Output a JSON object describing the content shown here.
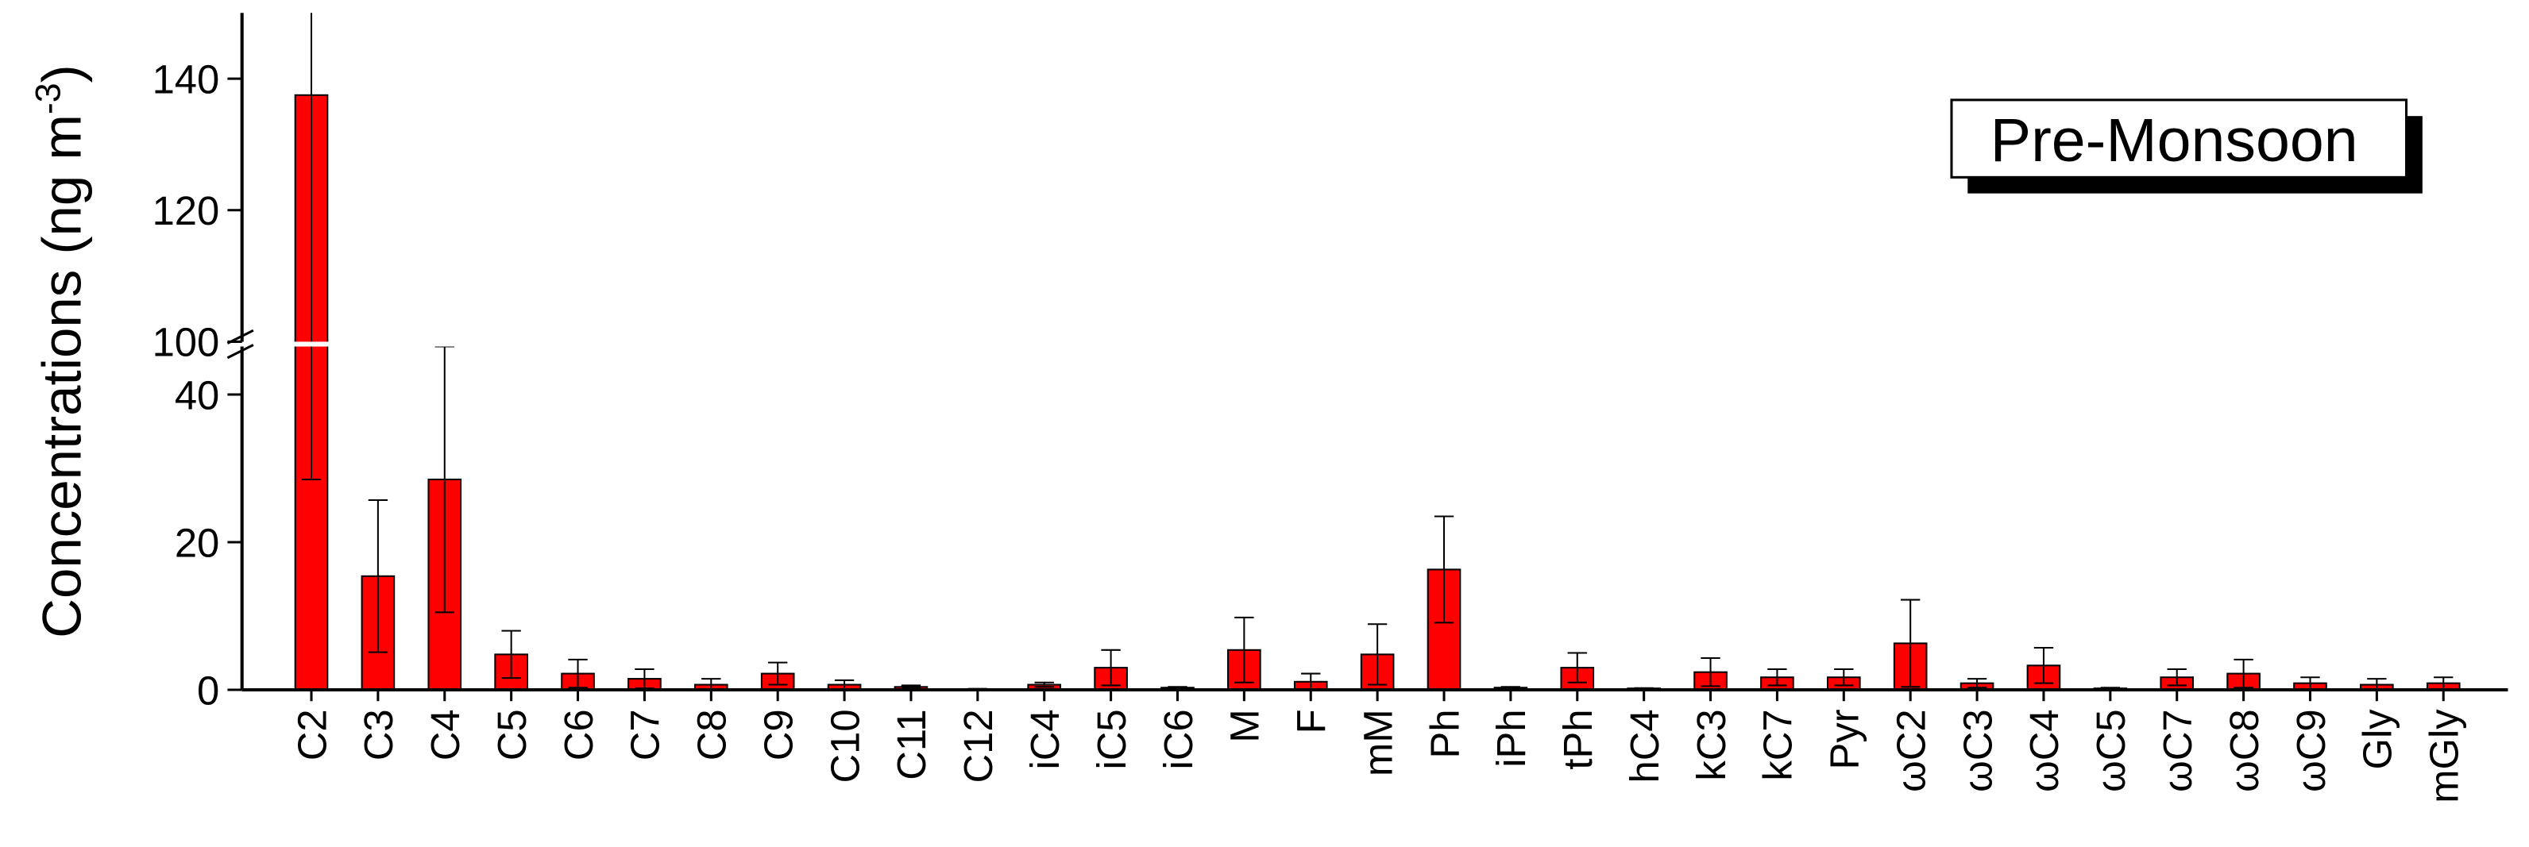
{
  "chart_data": {
    "type": "bar",
    "ylabel": [
      "Concentrations (ng m",
      "-3",
      ")"
    ],
    "annotation": "Pre-Monsoon",
    "categories": [
      "C2",
      "C3",
      "C4",
      "C5",
      "C6",
      "C7",
      "C8",
      "C9",
      "C10",
      "C11",
      "C12",
      "iC4",
      "iC5",
      "iC6",
      "M",
      "F",
      "mM",
      "Ph",
      "iPh",
      "tPh",
      "hC4",
      "kC3",
      "kC7",
      "Pyr",
      "ωC2",
      "ωC3",
      "ωC4",
      "ωC5",
      "ωC7",
      "ωC8",
      "ωC9",
      "Gly",
      "mGly"
    ],
    "values": [
      137.5,
      15.4,
      28.5,
      4.8,
      2.2,
      1.5,
      0.7,
      2.2,
      0.7,
      0.4,
      0.1,
      0.7,
      3.0,
      0.3,
      5.4,
      1.1,
      4.8,
      16.3,
      0.3,
      3.0,
      0.2,
      2.4,
      1.7,
      1.7,
      6.3,
      0.9,
      3.3,
      0.2,
      1.7,
      2.2,
      0.9,
      0.7,
      0.9
    ],
    "errors": [
      109,
      10.3,
      18,
      3.2,
      1.9,
      1.3,
      0.8,
      1.5,
      0.6,
      0.2,
      0.05,
      0.3,
      2.4,
      0.1,
      4.4,
      1.1,
      4.1,
      7.2,
      0.1,
      2.0,
      0.05,
      1.9,
      1.1,
      1.1,
      5.9,
      0.6,
      2.4,
      0.1,
      1.1,
      1.9,
      0.8,
      0.8,
      0.8
    ],
    "color": "#ff0000",
    "ylim": [
      0,
      150
    ],
    "ybreak": [
      46.5,
      100
    ],
    "yticks": [
      0,
      20,
      40,
      100,
      120,
      140
    ]
  }
}
